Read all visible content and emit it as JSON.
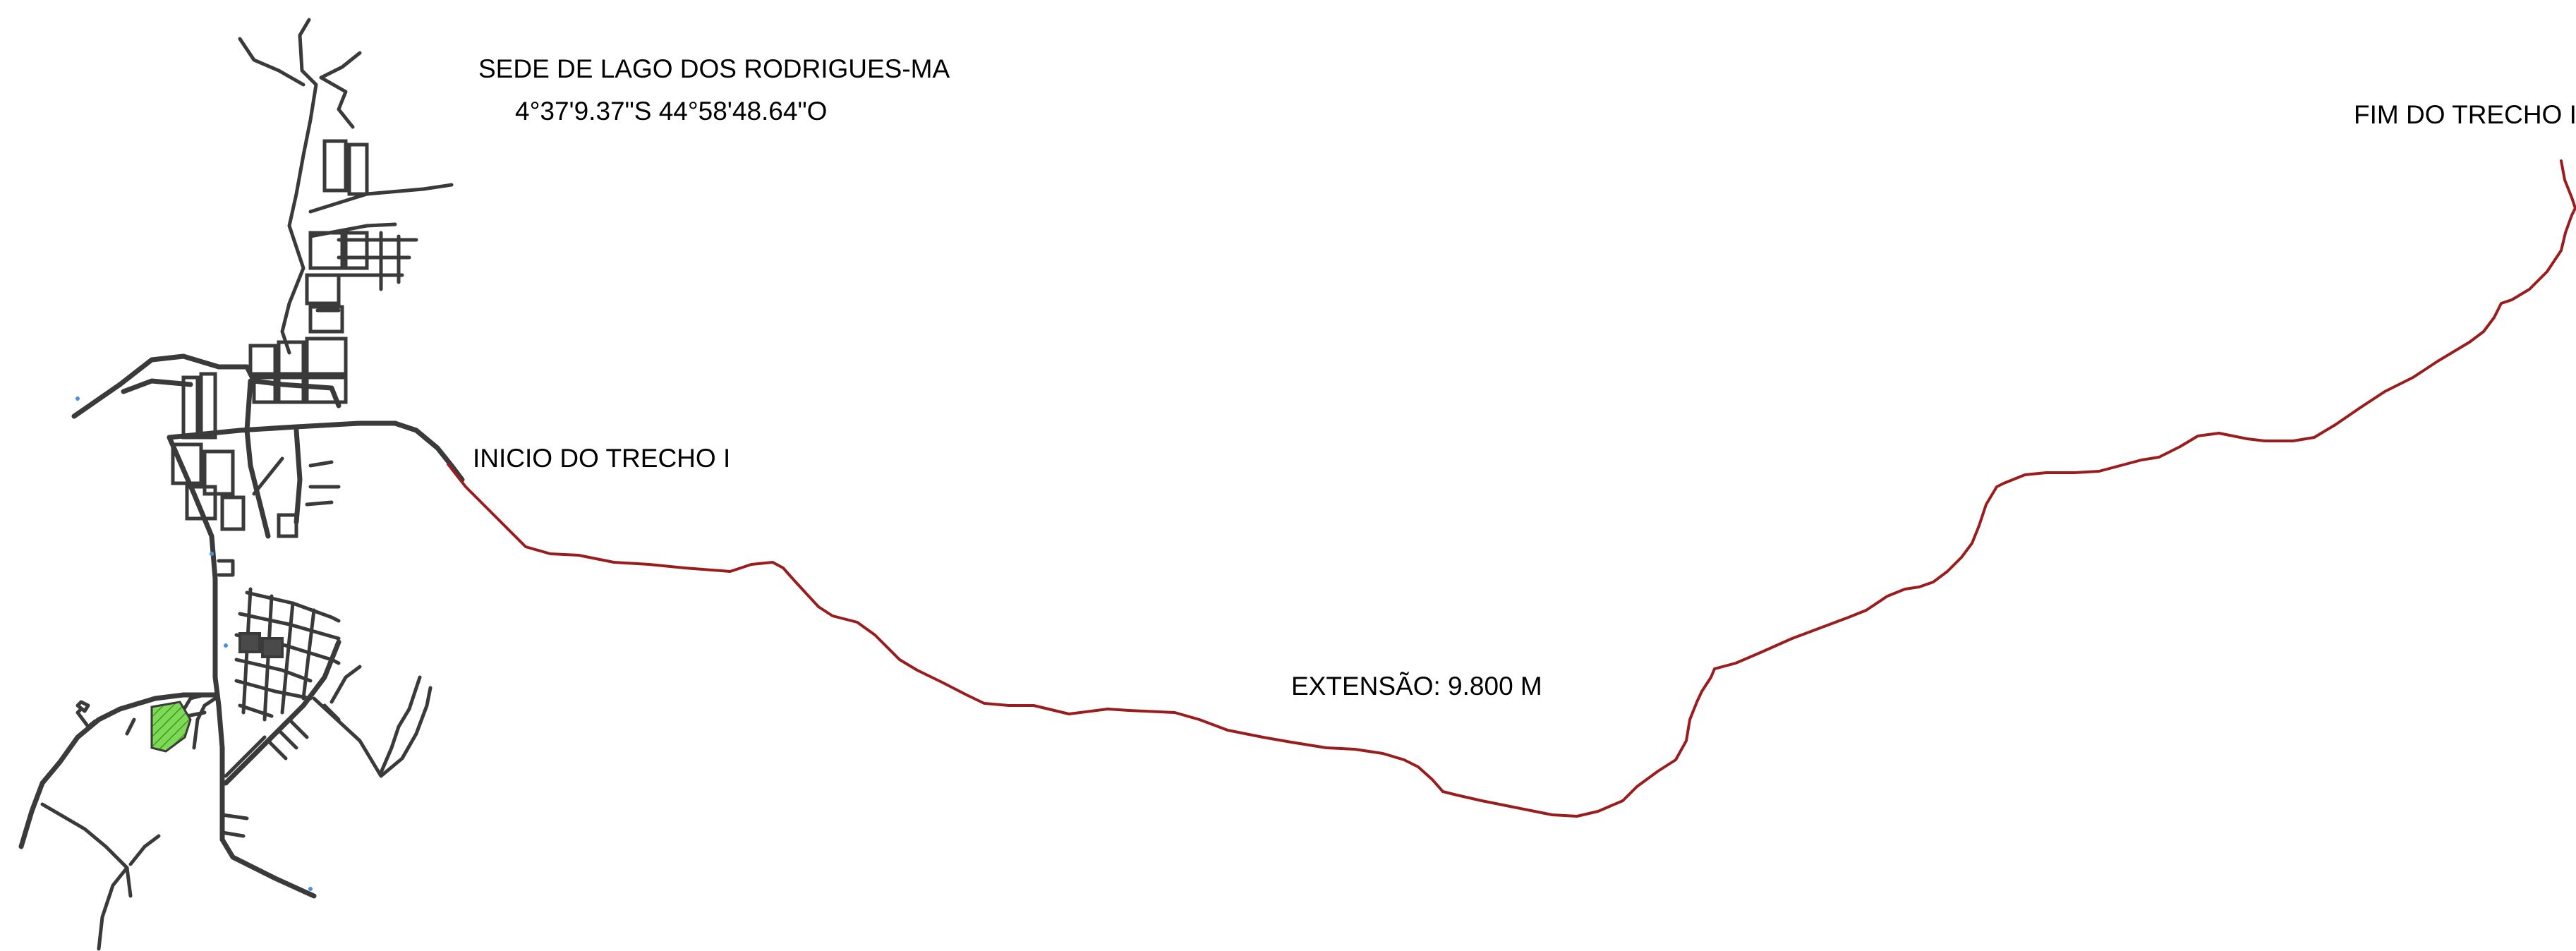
{
  "title": "SEDE DE LAGO DOS RODRIGUES-MA",
  "coordinates": "4°37'9.37\"S   44°58'48.64\"O",
  "start_label": "INICIO DO TRECHO I",
  "end_label": "FIM DO TRECHO I",
  "extent_label": "EXTENSÃO: 9.800 M",
  "colors": {
    "route": "#9b1c1c",
    "streets": "#3a3a3a",
    "park": "#7ed957",
    "background": "#ffffff"
  }
}
